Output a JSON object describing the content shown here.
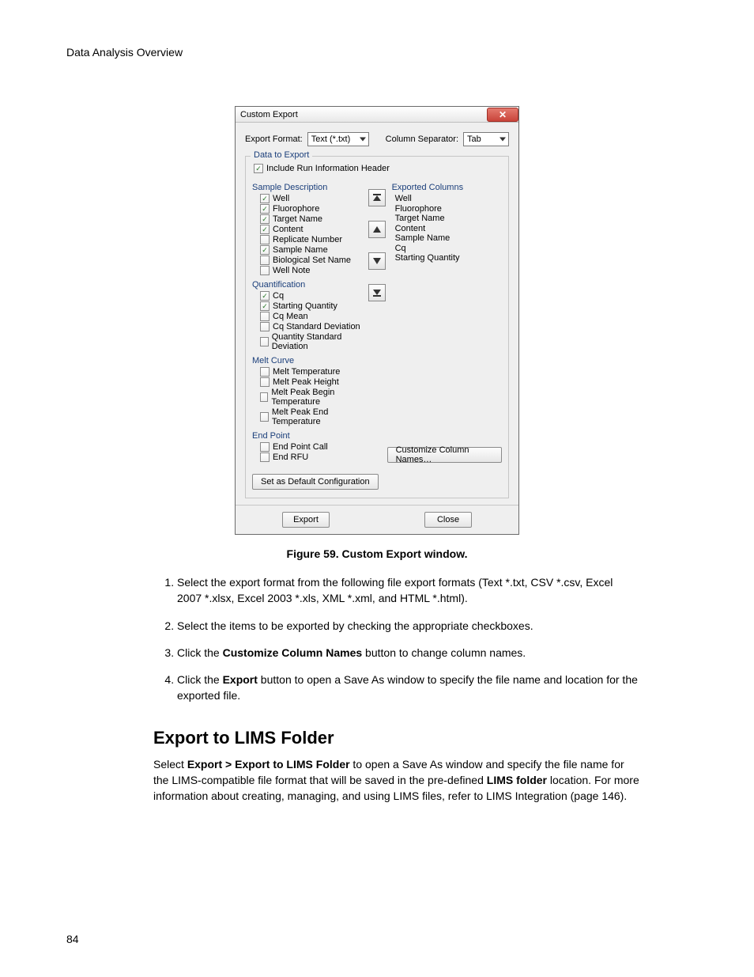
{
  "page": {
    "header": "Data Analysis Overview",
    "number": "84"
  },
  "dialog": {
    "title": "Custom Export",
    "close_glyph": "✕",
    "export_format_label": "Export Format:",
    "export_format_value": "Text (*.txt)",
    "column_sep_label": "Column Separator:",
    "column_sep_value": "Tab",
    "fieldset_legend": "Data to Export",
    "include_header": "Include Run Information Header",
    "sample_desc_header": "Sample Description",
    "exported_header": "Exported Columns",
    "sample_desc": [
      {
        "label": "Well",
        "checked": true
      },
      {
        "label": "Fluorophore",
        "checked": true
      },
      {
        "label": "Target Name",
        "checked": true
      },
      {
        "label": "Content",
        "checked": true
      },
      {
        "label": "Replicate Number",
        "checked": false
      },
      {
        "label": "Sample Name",
        "checked": true
      },
      {
        "label": "Biological Set Name",
        "checked": false
      },
      {
        "label": "Well Note",
        "checked": false
      }
    ],
    "quant_header": "Quantification",
    "quant": [
      {
        "label": "Cq",
        "checked": true
      },
      {
        "label": "Starting Quantity",
        "checked": true
      },
      {
        "label": "Cq Mean",
        "checked": false
      },
      {
        "label": "Cq Standard Deviation",
        "checked": false
      },
      {
        "label": "Quantity Standard Deviation",
        "checked": false
      }
    ],
    "melt_header": "Melt Curve",
    "melt": [
      {
        "label": "Melt Temperature",
        "checked": false
      },
      {
        "label": "Melt Peak Height",
        "checked": false
      },
      {
        "label": "Melt Peak Begin Temperature",
        "checked": false
      },
      {
        "label": "Melt Peak End Temperature",
        "checked": false
      }
    ],
    "endpoint_header": "End Point",
    "endpoint": [
      {
        "label": "End Point Call",
        "checked": false
      },
      {
        "label": "End RFU",
        "checked": false
      }
    ],
    "exported_cols": [
      "Well",
      "Fluorophore",
      "Target Name",
      "Content",
      "Sample Name",
      "Cq",
      "Starting Quantity"
    ],
    "customize_btn": "Customize Column Names…",
    "set_default_btn": "Set as Default Configuration",
    "export_btn": "Export",
    "close_btn": "Close"
  },
  "figure_caption": "Figure 59. Custom Export window.",
  "steps": {
    "s1a": "Select the export format from the following file export formats (Text *.txt, CSV *.csv, Excel 2007 *.xlsx, Excel 2003 *.xls, XML *.xml, and HTML *.html).",
    "s2": "Select the items to be exported by checking the appropriate checkboxes.",
    "s3a": "Click the ",
    "s3b": "Customize Column Names",
    "s3c": " button to change column names.",
    "s4a": "Click the ",
    "s4b": "Export",
    "s4c": " button to open a Save As window to specify the file name and location for the exported file."
  },
  "section": {
    "heading": "Export to LIMS Folder",
    "p_a": "Select ",
    "p_b": "Export > Export to LIMS Folder",
    "p_c": " to open a Save As window and specify the file name for the LIMS-compatible file format that will be saved in the pre-defined ",
    "p_d": "LIMS folder",
    "p_e": " location. For more information about creating, managing, and using LIMS files, refer to LIMS Integration (page 146)."
  }
}
